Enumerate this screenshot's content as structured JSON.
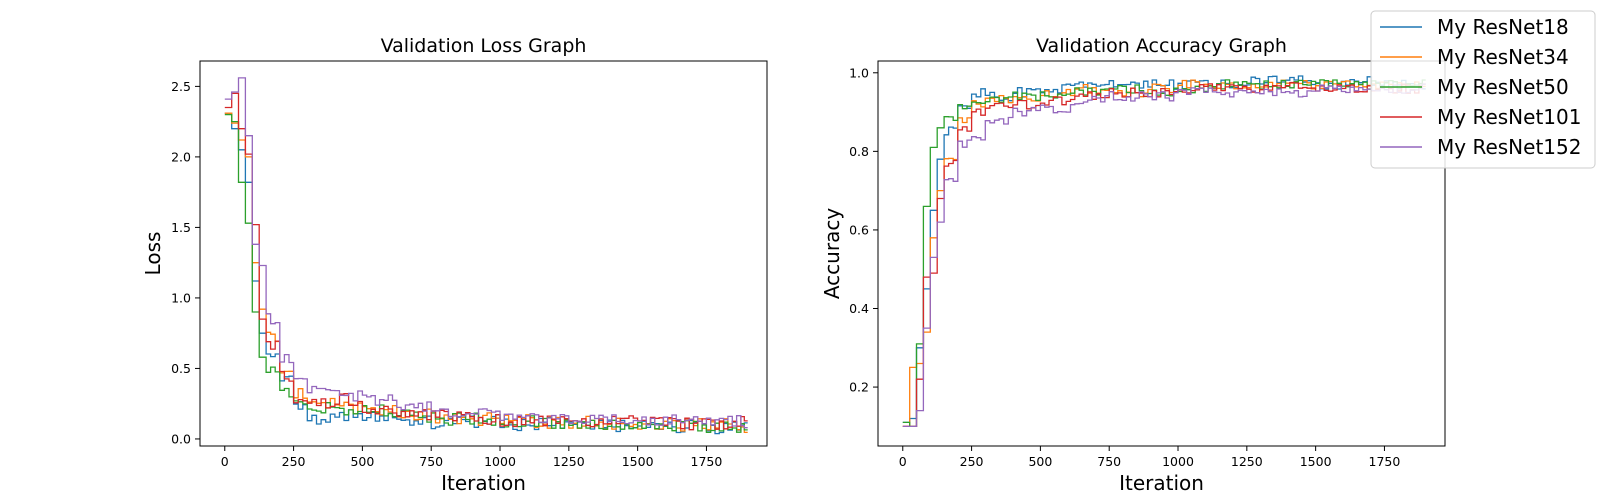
{
  "chart_data": [
    {
      "type": "line",
      "title": "Validation Loss Graph",
      "xlabel": "Iteration",
      "ylabel": "Loss",
      "xlim": [
        -90,
        1970
      ],
      "ylim": [
        -0.05,
        2.68
      ],
      "xticks": [
        0,
        250,
        500,
        750,
        1000,
        1250,
        1500,
        1750
      ],
      "yticks": [
        0.0,
        0.5,
        1.0,
        1.5,
        2.0,
        2.5
      ],
      "ytick_labels": [
        "0.0",
        "0.5",
        "1.0",
        "1.5",
        "2.0",
        "2.5"
      ],
      "grid": false,
      "series": [
        {
          "name": "My ResNet18",
          "color": "#1f77b4",
          "x": [
            0,
            25,
            50,
            75,
            100,
            125,
            150,
            200,
            250,
            300,
            400,
            500,
            625,
            750,
            875,
            1000,
            1125,
            1250,
            1375,
            1500,
            1625,
            1750,
            1875
          ],
          "y": [
            2.31,
            2.2,
            2.05,
            1.82,
            1.12,
            0.75,
            0.58,
            0.42,
            0.22,
            0.15,
            0.17,
            0.15,
            0.12,
            0.11,
            0.12,
            0.1,
            0.1,
            0.1,
            0.09,
            0.09,
            0.09,
            0.08,
            0.08
          ]
        },
        {
          "name": "My ResNet34",
          "color": "#ff7f0e",
          "x": [
            0,
            25,
            50,
            75,
            100,
            125,
            150,
            200,
            250,
            300,
            400,
            500,
            625,
            750,
            875,
            1000,
            1125,
            1250,
            1375,
            1500,
            1625,
            1750,
            1875
          ],
          "y": [
            2.31,
            2.24,
            2.12,
            2.0,
            1.25,
            0.92,
            0.72,
            0.5,
            0.32,
            0.25,
            0.22,
            0.2,
            0.17,
            0.15,
            0.14,
            0.13,
            0.12,
            0.12,
            0.11,
            0.11,
            0.1,
            0.1,
            0.09
          ]
        },
        {
          "name": "My ResNet50",
          "color": "#2ca02c",
          "x": [
            0,
            25,
            50,
            75,
            100,
            125,
            150,
            200,
            250,
            300,
            400,
            500,
            625,
            750,
            875,
            1000,
            1125,
            1250,
            1375,
            1500,
            1625,
            1750,
            1875
          ],
          "y": [
            2.3,
            2.25,
            1.82,
            1.53,
            0.9,
            0.58,
            0.47,
            0.33,
            0.25,
            0.22,
            0.2,
            0.2,
            0.16,
            0.14,
            0.14,
            0.12,
            0.11,
            0.11,
            0.1,
            0.1,
            0.09,
            0.09,
            0.09
          ]
        },
        {
          "name": "My ResNet101",
          "color": "#d62728",
          "x": [
            0,
            25,
            50,
            75,
            100,
            125,
            150,
            200,
            250,
            300,
            400,
            500,
            625,
            750,
            875,
            1000,
            1125,
            1250,
            1375,
            1500,
            1625,
            1750,
            1875
          ],
          "y": [
            2.35,
            2.45,
            2.2,
            2.02,
            1.52,
            0.85,
            0.68,
            0.45,
            0.3,
            0.25,
            0.28,
            0.22,
            0.18,
            0.17,
            0.15,
            0.12,
            0.12,
            0.13,
            0.12,
            0.12,
            0.11,
            0.11,
            0.12
          ]
        },
        {
          "name": "My ResNet152",
          "color": "#9467bd",
          "x": [
            0,
            25,
            50,
            75,
            100,
            125,
            150,
            200,
            250,
            300,
            400,
            500,
            625,
            750,
            875,
            1000,
            1125,
            1250,
            1375,
            1500,
            1625,
            1750,
            1875
          ],
          "y": [
            2.41,
            2.46,
            2.56,
            2.15,
            1.38,
            1.23,
            0.85,
            0.56,
            0.41,
            0.35,
            0.3,
            0.27,
            0.22,
            0.19,
            0.18,
            0.16,
            0.16,
            0.15,
            0.14,
            0.14,
            0.14,
            0.13,
            0.12
          ]
        }
      ]
    },
    {
      "type": "line",
      "title": "Validation Accuracy Graph",
      "xlabel": "Iteration",
      "ylabel": "Accuracy",
      "xlim": [
        -90,
        1970
      ],
      "ylim": [
        0.05,
        1.03
      ],
      "xticks": [
        0,
        250,
        500,
        750,
        1000,
        1250,
        1500,
        1750
      ],
      "yticks": [
        0.2,
        0.4,
        0.6,
        0.8,
        1.0
      ],
      "ytick_labels": [
        "0.2",
        "0.4",
        "0.6",
        "0.8",
        "1.0"
      ],
      "grid": false,
      "series": [
        {
          "name": "My ResNet18",
          "color": "#1f77b4",
          "x": [
            0,
            25,
            50,
            75,
            100,
            125,
            150,
            200,
            250,
            300,
            400,
            500,
            625,
            750,
            875,
            1000,
            1125,
            1250,
            1375,
            1500,
            1625,
            1750,
            1875
          ],
          "y": [
            0.11,
            0.12,
            0.3,
            0.45,
            0.65,
            0.78,
            0.85,
            0.91,
            0.95,
            0.94,
            0.95,
            0.96,
            0.97,
            0.97,
            0.97,
            0.97,
            0.97,
            0.98,
            0.98,
            0.97,
            0.98,
            0.97,
            0.97
          ]
        },
        {
          "name": "My ResNet34",
          "color": "#ff7f0e",
          "x": [
            0,
            25,
            50,
            75,
            100,
            125,
            150,
            200,
            250,
            300,
            400,
            500,
            625,
            750,
            875,
            1000,
            1125,
            1250,
            1375,
            1500,
            1625,
            1750,
            1875
          ],
          "y": [
            0.1,
            0.25,
            0.26,
            0.34,
            0.58,
            0.7,
            0.78,
            0.88,
            0.92,
            0.93,
            0.94,
            0.95,
            0.96,
            0.95,
            0.96,
            0.97,
            0.97,
            0.97,
            0.97,
            0.97,
            0.97,
            0.97,
            0.96
          ]
        },
        {
          "name": "My ResNet50",
          "color": "#2ca02c",
          "x": [
            0,
            25,
            50,
            75,
            100,
            125,
            150,
            200,
            250,
            300,
            400,
            500,
            625,
            750,
            875,
            1000,
            1125,
            1250,
            1375,
            1500,
            1625,
            1750,
            1875
          ],
          "y": [
            0.11,
            0.1,
            0.31,
            0.66,
            0.81,
            0.86,
            0.89,
            0.92,
            0.93,
            0.93,
            0.94,
            0.94,
            0.95,
            0.96,
            0.95,
            0.96,
            0.97,
            0.97,
            0.97,
            0.97,
            0.97,
            0.97,
            0.97
          ]
        },
        {
          "name": "My ResNet101",
          "color": "#d62728",
          "x": [
            0,
            25,
            50,
            75,
            100,
            125,
            150,
            200,
            250,
            300,
            400,
            500,
            625,
            750,
            875,
            1000,
            1125,
            1250,
            1375,
            1500,
            1625,
            1750,
            1875
          ],
          "y": [
            0.1,
            0.1,
            0.22,
            0.48,
            0.49,
            0.68,
            0.77,
            0.86,
            0.9,
            0.92,
            0.92,
            0.93,
            0.94,
            0.95,
            0.95,
            0.96,
            0.96,
            0.96,
            0.97,
            0.96,
            0.96,
            0.96,
            0.96
          ]
        },
        {
          "name": "My ResNet152",
          "color": "#9467bd",
          "x": [
            0,
            25,
            50,
            75,
            100,
            125,
            150,
            200,
            250,
            300,
            400,
            500,
            625,
            750,
            875,
            1000,
            1125,
            1250,
            1375,
            1500,
            1625,
            1750,
            1875
          ],
          "y": [
            0.1,
            0.1,
            0.14,
            0.35,
            0.53,
            0.62,
            0.72,
            0.82,
            0.84,
            0.88,
            0.9,
            0.91,
            0.93,
            0.94,
            0.94,
            0.95,
            0.95,
            0.95,
            0.95,
            0.96,
            0.96,
            0.96,
            0.96
          ]
        }
      ]
    }
  ],
  "legend": {
    "placement": "upper-right",
    "entries": [
      "My ResNet18",
      "My ResNet34",
      "My ResNet50",
      "My ResNet101",
      "My ResNet152"
    ]
  }
}
